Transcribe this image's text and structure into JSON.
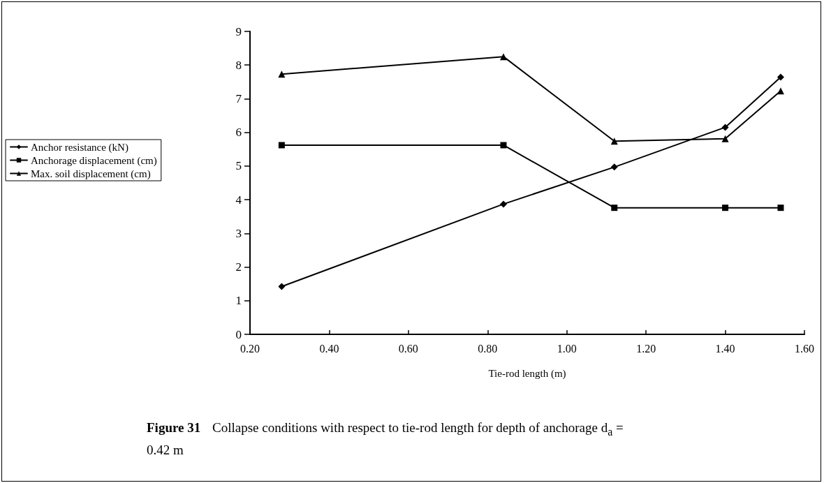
{
  "chart_data": {
    "type": "line",
    "xlabel": "Tie-rod length (m)",
    "annotations": [
      "Figure 31",
      "Collapse conditions with respect to tie-rod length for depth of anchorage d$_{a}$ = 0.42 m"
    ],
    "x": [
      0.28,
      0.84,
      1.12,
      1.4,
      1.54
    ],
    "series": [
      {
        "name": "Anchor resistance (kN)",
        "color": "#000000",
        "marker": "diamond",
        "values": [
          1.42,
          3.87,
          4.97,
          6.15,
          7.64
        ]
      },
      {
        "name": "Anchorage displacement (cm)",
        "color": "#000000",
        "marker": "square",
        "values": [
          5.62,
          5.62,
          3.76,
          3.76,
          3.76
        ]
      },
      {
        "name": "Max. soil displacement (cm)",
        "color": "#000000",
        "marker": "triangle",
        "values": [
          7.73,
          8.25,
          5.74,
          5.81,
          7.23
        ]
      }
    ],
    "xlim": [
      0.2,
      1.6
    ],
    "xticks": [
      {
        "value": 0.2,
        "label": "0.20"
      },
      {
        "value": 0.4,
        "label": "0.40"
      },
      {
        "value": 0.6,
        "label": "0.60"
      },
      {
        "value": 0.8,
        "label": "0.80"
      },
      {
        "value": 1.0,
        "label": "1.00"
      },
      {
        "value": 1.2,
        "label": "1.20"
      },
      {
        "value": 1.4,
        "label": "1.40"
      },
      {
        "value": 1.6,
        "label": "1.60"
      }
    ],
    "ylim": [
      0,
      9
    ],
    "yticks": [
      0,
      1,
      2,
      3,
      4,
      5,
      6,
      7,
      8,
      9
    ],
    "grid": false,
    "legend": "left",
    "line_style": "solid"
  }
}
